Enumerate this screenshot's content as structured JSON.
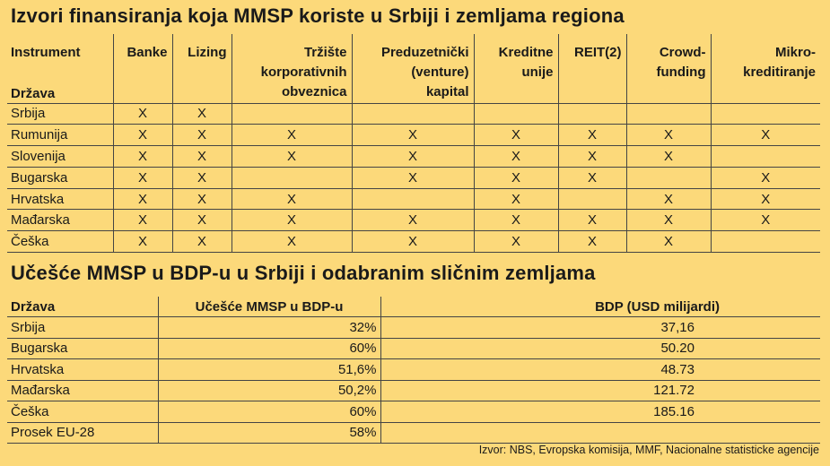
{
  "title1": "Izvori finansiranja koja MMSP koriste u Srbiji i zemljama regiona",
  "title2": "Učešće MMSP u BDP-u u Srbiji i odabranim sličnim zemljama",
  "table1": {
    "corner_top": "Instrument",
    "corner_bottom": "Država",
    "columns": [
      "Banke",
      "Lizing",
      "Tržište korporativnih obveznica",
      "Preduzetnički (venture) kapital",
      "Kreditne unije",
      "REIT(2)",
      "Crowd-funding",
      "Mikro-kreditiranje"
    ],
    "column_lines": [
      [
        "Banke"
      ],
      [
        "Lizing"
      ],
      [
        "Tržište",
        "korporativnih",
        "obveznica"
      ],
      [
        "Preduzetnički",
        "(venture)",
        "kapital"
      ],
      [
        "Kreditne",
        "unije"
      ],
      [
        "REIT(2)"
      ],
      [
        "Crowd-",
        "funding"
      ],
      [
        "Mikro-",
        "kreditiranje"
      ]
    ],
    "mark": "X",
    "rows": [
      {
        "country": "Srbija",
        "marks": [
          1,
          1,
          0,
          0,
          0,
          0,
          0,
          0
        ]
      },
      {
        "country": "Rumunija",
        "marks": [
          1,
          1,
          1,
          1,
          1,
          1,
          1,
          1
        ]
      },
      {
        "country": "Slovenija",
        "marks": [
          1,
          1,
          1,
          1,
          1,
          1,
          1,
          0
        ]
      },
      {
        "country": "Bugarska",
        "marks": [
          1,
          1,
          0,
          1,
          1,
          1,
          0,
          1
        ]
      },
      {
        "country": "Hrvatska",
        "marks": [
          1,
          1,
          1,
          0,
          1,
          0,
          1,
          1
        ]
      },
      {
        "country": "Mađarska",
        "marks": [
          1,
          1,
          1,
          1,
          1,
          1,
          1,
          1
        ]
      },
      {
        "country": "Češka",
        "marks": [
          1,
          1,
          1,
          1,
          1,
          1,
          1,
          0
        ]
      }
    ]
  },
  "table2": {
    "headers": {
      "country": "Država",
      "share": "Učešće MMSP u BDP-u",
      "gdp": "BDP (USD milijardi)"
    },
    "rows": [
      {
        "country": "Srbija",
        "share": "32%",
        "gdp": "37,16"
      },
      {
        "country": "Bugarska",
        "share": "60%",
        "gdp": "50.20"
      },
      {
        "country": "Hrvatska",
        "share": "51,6%",
        "gdp": "48.73"
      },
      {
        "country": "Mađarska",
        "share": "50,2%",
        "gdp": "121.72"
      },
      {
        "country": "Češka",
        "share": "60%",
        "gdp": "185.16"
      },
      {
        "country": "Prosek EU-28",
        "share": "58%",
        "gdp": ""
      }
    ]
  },
  "source": "Izvor: NBS, Evropska komisija, MMF, Nacionalne statisticke agencije",
  "colors": {
    "background": "#fcd97a",
    "text": "#1a1a1a",
    "lines": "#444444"
  }
}
